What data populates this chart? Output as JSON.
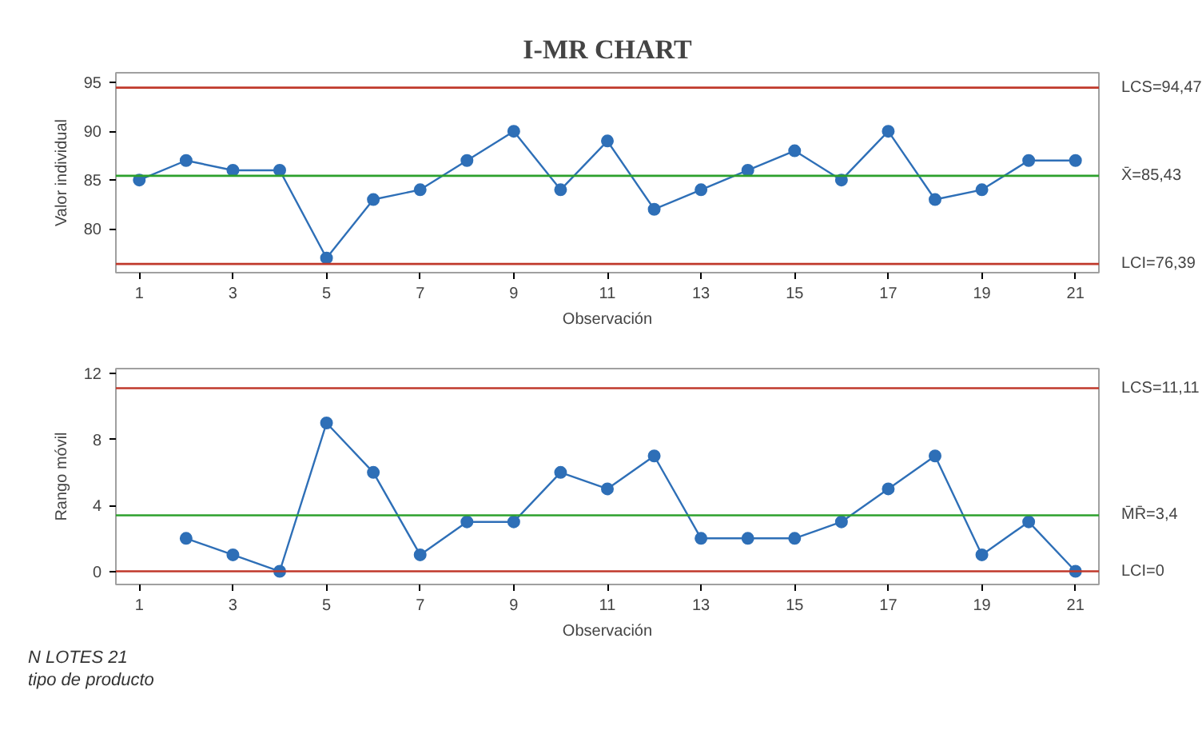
{
  "chart_data": [
    {
      "type": "line",
      "title": "I-MR CHART",
      "xlabel": "Observación",
      "ylabel": "Valor individual",
      "x": [
        1,
        2,
        3,
        4,
        5,
        6,
        7,
        8,
        9,
        10,
        11,
        12,
        13,
        14,
        15,
        16,
        17,
        18,
        19,
        20,
        21
      ],
      "series": [
        {
          "color": "#2e6fb7",
          "values": [
            85,
            87,
            86,
            86,
            77,
            83,
            84,
            87,
            90,
            84,
            89,
            82,
            84,
            86,
            88,
            85,
            90,
            83,
            84,
            87,
            87
          ]
        }
      ],
      "xlim": [
        0.5,
        21.5
      ],
      "xticks": [
        1,
        3,
        5,
        7,
        9,
        11,
        13,
        15,
        17,
        19,
        21
      ],
      "ylim": [
        75.5,
        96
      ],
      "yticks": [
        80,
        85,
        90,
        95
      ],
      "ref_lines": [
        {
          "axis": "y",
          "value": 94.47,
          "label": "LCS=94,47",
          "color": "#c0392b"
        },
        {
          "axis": "y",
          "value": 85.43,
          "label": "X̄=85,43",
          "color": "#2ca02c"
        },
        {
          "axis": "y",
          "value": 76.39,
          "label": "LCI=76,39",
          "color": "#c0392b"
        }
      ],
      "marker": "circle",
      "line_style": "solid",
      "grid": false
    },
    {
      "type": "line",
      "xlabel": "Observación",
      "ylabel": "Rango móvil",
      "series": [
        {
          "color": "#2e6fb7",
          "x": [
            2,
            3,
            4,
            5,
            6,
            7,
            8,
            9,
            10,
            11,
            12,
            13,
            14,
            15,
            16,
            17,
            18,
            19,
            20,
            21
          ],
          "values": [
            2,
            1,
            0,
            9,
            6,
            1,
            3,
            3,
            6,
            5,
            7,
            2,
            2,
            2,
            3,
            5,
            7,
            1,
            3,
            0
          ]
        }
      ],
      "xlim": [
        0.5,
        21.5
      ],
      "xticks": [
        1,
        3,
        5,
        7,
        9,
        11,
        13,
        15,
        17,
        19,
        21
      ],
      "ylim": [
        -0.8,
        12.3
      ],
      "yticks": [
        0,
        4,
        8,
        12
      ],
      "ref_lines": [
        {
          "axis": "y",
          "value": 11.11,
          "label": "LCS=11,11",
          "color": "#c0392b"
        },
        {
          "axis": "y",
          "value": 3.4,
          "label": "M̄R̄=3,4",
          "color": "#2ca02c"
        },
        {
          "axis": "y",
          "value": 0,
          "label": "LCI=0",
          "color": "#c0392b"
        }
      ],
      "annotations": [
        "N LOTES 21",
        "tipo de producto"
      ],
      "marker": "circle",
      "line_style": "solid",
      "grid": false
    }
  ]
}
